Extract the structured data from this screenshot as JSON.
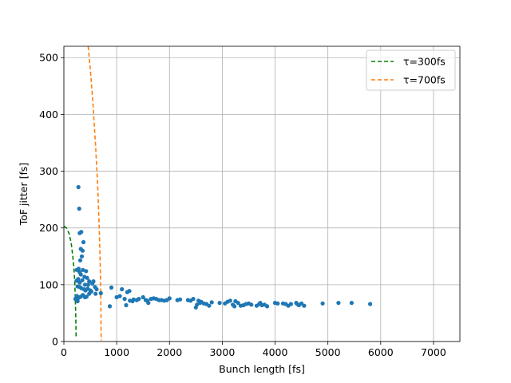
{
  "chart_data": {
    "type": "scatter",
    "xlabel": "Bunch length [fs]",
    "ylabel": "ToF jitter [fs]",
    "xlim": [
      0,
      7500
    ],
    "ylim": [
      0,
      520
    ],
    "xticks": [
      0,
      1000,
      2000,
      3000,
      4000,
      5000,
      6000,
      7000
    ],
    "yticks": [
      0,
      100,
      200,
      300,
      400,
      500
    ],
    "grid": true,
    "legend": "top-right",
    "colors": {
      "scatter": "#1f77b4",
      "tau300": "#008000",
      "tau700": "#ff7f0e"
    },
    "lines": [
      {
        "name": "τ=300fs",
        "style": "dashed",
        "color": "#008000",
        "points": [
          [
            0,
            203
          ],
          [
            50,
            200
          ],
          [
            100,
            190
          ],
          [
            140,
            172
          ],
          [
            170,
            150
          ],
          [
            190,
            128
          ],
          [
            205,
            105
          ],
          [
            215,
            80
          ],
          [
            222,
            55
          ],
          [
            228,
            30
          ],
          [
            232,
            8
          ]
        ]
      },
      {
        "name": "τ=700fs",
        "style": "dashed",
        "color": "#ff7f0e",
        "points": [
          [
            460,
            520
          ],
          [
            500,
            480
          ],
          [
            550,
            420
          ],
          [
            600,
            345
          ],
          [
            640,
            275
          ],
          [
            670,
            200
          ],
          [
            690,
            130
          ],
          [
            700,
            70
          ],
          [
            705,
            20
          ],
          [
            708,
            2
          ]
        ]
      }
    ],
    "scatter": {
      "points": [
        [
          275,
          272
        ],
        [
          290,
          234
        ],
        [
          300,
          191
        ],
        [
          330,
          193
        ],
        [
          370,
          175
        ],
        [
          320,
          163
        ],
        [
          355,
          160
        ],
        [
          340,
          150
        ],
        [
          310,
          143
        ],
        [
          245,
          126
        ],
        [
          280,
          128
        ],
        [
          300,
          122
        ],
        [
          360,
          126
        ],
        [
          420,
          124
        ],
        [
          320,
          118
        ],
        [
          390,
          114
        ],
        [
          440,
          112
        ],
        [
          240,
          107
        ],
        [
          270,
          110
        ],
        [
          300,
          104
        ],
        [
          350,
          108
        ],
        [
          480,
          106
        ],
        [
          560,
          106
        ],
        [
          540,
          102
        ],
        [
          400,
          100
        ],
        [
          460,
          100
        ],
        [
          260,
          97
        ],
        [
          300,
          96
        ],
        [
          330,
          94
        ],
        [
          380,
          92
        ],
        [
          410,
          90
        ],
        [
          450,
          93
        ],
        [
          500,
          90
        ],
        [
          590,
          96
        ],
        [
          620,
          92
        ],
        [
          250,
          80
        ],
        [
          280,
          77
        ],
        [
          320,
          79
        ],
        [
          360,
          82
        ],
        [
          400,
          78
        ],
        [
          430,
          79
        ],
        [
          480,
          84
        ],
        [
          520,
          88
        ],
        [
          600,
          84
        ],
        [
          700,
          85
        ],
        [
          260,
          71
        ],
        [
          220,
          75
        ],
        [
          900,
          95
        ],
        [
          870,
          62
        ],
        [
          1000,
          78
        ],
        [
          1060,
          80
        ],
        [
          1100,
          92
        ],
        [
          1150,
          75
        ],
        [
          1180,
          64
        ],
        [
          1200,
          87
        ],
        [
          1240,
          89
        ],
        [
          1250,
          72
        ],
        [
          1300,
          71
        ],
        [
          1320,
          74
        ],
        [
          1380,
          73
        ],
        [
          1420,
          75
        ],
        [
          1500,
          78
        ],
        [
          1550,
          73
        ],
        [
          1580,
          72
        ],
        [
          1600,
          68
        ],
        [
          1650,
          75
        ],
        [
          1700,
          76
        ],
        [
          1750,
          75
        ],
        [
          1800,
          73
        ],
        [
          1850,
          73
        ],
        [
          1900,
          72
        ],
        [
          1950,
          73
        ],
        [
          2000,
          76
        ],
        [
          2150,
          73
        ],
        [
          2200,
          74
        ],
        [
          2350,
          73
        ],
        [
          2400,
          72
        ],
        [
          2450,
          75
        ],
        [
          2500,
          60
        ],
        [
          2520,
          65
        ],
        [
          2550,
          72
        ],
        [
          2580,
          68
        ],
        [
          2600,
          70
        ],
        [
          2650,
          67
        ],
        [
          2700,
          66
        ],
        [
          2750,
          63
        ],
        [
          2800,
          69
        ],
        [
          2950,
          68
        ],
        [
          3050,
          67
        ],
        [
          3100,
          70
        ],
        [
          3150,
          72
        ],
        [
          3200,
          65
        ],
        [
          3230,
          62
        ],
        [
          3250,
          71
        ],
        [
          3300,
          68
        ],
        [
          3350,
          63
        ],
        [
          3400,
          64
        ],
        [
          3450,
          66
        ],
        [
          3500,
          67
        ],
        [
          3550,
          65
        ],
        [
          3650,
          63
        ],
        [
          3700,
          66
        ],
        [
          3720,
          68
        ],
        [
          3750,
          64
        ],
        [
          3800,
          65
        ],
        [
          3850,
          62
        ],
        [
          4000,
          68
        ],
        [
          4050,
          67
        ],
        [
          4150,
          67
        ],
        [
          4200,
          66
        ],
        [
          4250,
          63
        ],
        [
          4300,
          66
        ],
        [
          4400,
          68
        ],
        [
          4420,
          66
        ],
        [
          4450,
          64
        ],
        [
          4500,
          67
        ],
        [
          4550,
          63
        ],
        [
          4900,
          67
        ],
        [
          5200,
          68
        ],
        [
          5450,
          68
        ],
        [
          5800,
          66
        ]
      ]
    }
  }
}
